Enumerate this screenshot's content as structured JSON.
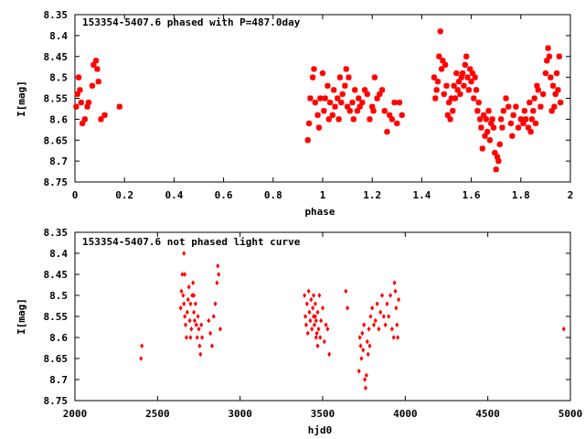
{
  "marker_color": "#ff0000",
  "chart_data": [
    {
      "type": "scatter",
      "title": "153354-5407.6 phased with P=487.0day",
      "xlabel": "phase",
      "ylabel": "I[mag]",
      "xlim": [
        0,
        2
      ],
      "ylim": [
        8.75,
        8.35
      ],
      "y_inverted": true,
      "xticks": [
        "0",
        "0.2",
        "0.4",
        "0.6",
        "0.8",
        "1",
        "1.2",
        "1.4",
        "1.6",
        "1.8",
        "2"
      ],
      "yticks": [
        "8.35",
        "8.4",
        "8.45",
        "8.5",
        "8.55",
        "8.6",
        "8.65",
        "8.7",
        "8.75"
      ],
      "series": [
        {
          "points": [
            [
              0.005,
              8.57
            ],
            [
              0.01,
              8.54
            ],
            [
              0.015,
              8.5
            ],
            [
              0.02,
              8.53
            ],
            [
              0.025,
              8.56
            ],
            [
              0.03,
              8.61
            ],
            [
              0.04,
              8.6
            ],
            [
              0.05,
              8.57
            ],
            [
              0.055,
              8.56
            ],
            [
              0.07,
              8.52
            ],
            [
              0.075,
              8.47
            ],
            [
              0.085,
              8.46
            ],
            [
              0.09,
              8.48
            ],
            [
              0.095,
              8.51
            ],
            [
              0.105,
              8.6
            ],
            [
              0.12,
              8.59
            ],
            [
              0.18,
              8.57
            ],
            [
              0.94,
              8.65
            ],
            [
              0.945,
              8.61
            ],
            [
              0.95,
              8.55
            ],
            [
              0.96,
              8.5
            ],
            [
              0.965,
              8.48
            ],
            [
              0.97,
              8.56
            ],
            [
              0.98,
              8.59
            ],
            [
              0.985,
              8.62
            ],
            [
              0.99,
              8.55
            ],
            [
              1.0,
              8.49
            ],
            [
              1.005,
              8.58
            ],
            [
              1.01,
              8.55
            ],
            [
              1.02,
              8.52
            ],
            [
              1.025,
              8.6
            ],
            [
              1.03,
              8.56
            ],
            [
              1.04,
              8.59
            ],
            [
              1.045,
              8.53
            ],
            [
              1.05,
              8.57
            ],
            [
              1.06,
              8.55
            ],
            [
              1.065,
              8.6
            ],
            [
              1.07,
              8.5
            ],
            [
              1.075,
              8.56
            ],
            [
              1.08,
              8.54
            ],
            [
              1.09,
              8.52
            ],
            [
              1.095,
              8.48
            ],
            [
              1.1,
              8.57
            ],
            [
              1.105,
              8.5
            ],
            [
              1.11,
              8.58
            ],
            [
              1.12,
              8.56
            ],
            [
              1.125,
              8.6
            ],
            [
              1.13,
              8.53
            ],
            [
              1.14,
              8.58
            ],
            [
              1.145,
              8.55
            ],
            [
              1.15,
              8.57
            ],
            [
              1.16,
              8.56
            ],
            [
              1.17,
              8.53
            ],
            [
              1.18,
              8.54
            ],
            [
              1.19,
              8.6
            ],
            [
              1.2,
              8.57
            ],
            [
              1.205,
              8.58
            ],
            [
              1.21,
              8.5
            ],
            [
              1.22,
              8.55
            ],
            [
              1.23,
              8.54
            ],
            [
              1.24,
              8.53
            ],
            [
              1.25,
              8.58
            ],
            [
              1.26,
              8.63
            ],
            [
              1.27,
              8.59
            ],
            [
              1.28,
              8.6
            ],
            [
              1.29,
              8.56
            ],
            [
              1.3,
              8.61
            ],
            [
              1.31,
              8.56
            ],
            [
              1.32,
              8.59
            ],
            [
              1.45,
              8.5
            ],
            [
              1.455,
              8.55
            ],
            [
              1.46,
              8.53
            ],
            [
              1.465,
              8.51
            ],
            [
              1.47,
              8.45
            ],
            [
              1.475,
              8.39
            ],
            [
              1.48,
              8.48
            ],
            [
              1.485,
              8.46
            ],
            [
              1.49,
              8.54
            ],
            [
              1.495,
              8.47
            ],
            [
              1.5,
              8.52
            ],
            [
              1.505,
              8.59
            ],
            [
              1.51,
              8.56
            ],
            [
              1.515,
              8.6
            ],
            [
              1.52,
              8.55
            ],
            [
              1.525,
              8.58
            ],
            [
              1.53,
              8.52
            ],
            [
              1.535,
              8.55
            ],
            [
              1.54,
              8.49
            ],
            [
              1.545,
              8.53
            ],
            [
              1.55,
              8.51
            ],
            [
              1.555,
              8.54
            ],
            [
              1.56,
              8.5
            ],
            [
              1.565,
              8.49
            ],
            [
              1.57,
              8.52
            ],
            [
              1.575,
              8.47
            ],
            [
              1.58,
              8.45
            ],
            [
              1.585,
              8.5
            ],
            [
              1.59,
              8.53
            ],
            [
              1.595,
              8.48
            ],
            [
              1.6,
              8.51
            ],
            [
              1.605,
              8.49
            ],
            [
              1.61,
              8.55
            ],
            [
              1.615,
              8.5
            ],
            [
              1.62,
              8.53
            ],
            [
              1.625,
              8.58
            ],
            [
              1.63,
              8.56
            ],
            [
              1.635,
              8.6
            ],
            [
              1.64,
              8.62
            ],
            [
              1.645,
              8.67
            ],
            [
              1.65,
              8.59
            ],
            [
              1.655,
              8.64
            ],
            [
              1.66,
              8.6
            ],
            [
              1.665,
              8.63
            ],
            [
              1.67,
              8.58
            ],
            [
              1.675,
              8.65
            ],
            [
              1.68,
              8.61
            ],
            [
              1.685,
              8.6
            ],
            [
              1.69,
              8.62
            ],
            [
              1.695,
              8.68
            ],
            [
              1.7,
              8.72
            ],
            [
              1.705,
              8.69
            ],
            [
              1.71,
              8.7
            ],
            [
              1.715,
              8.66
            ],
            [
              1.72,
              8.6
            ],
            [
              1.725,
              8.62
            ],
            [
              1.73,
              8.58
            ],
            [
              1.74,
              8.55
            ],
            [
              1.75,
              8.57
            ],
            [
              1.76,
              8.61
            ],
            [
              1.765,
              8.64
            ],
            [
              1.77,
              8.59
            ],
            [
              1.78,
              8.57
            ],
            [
              1.79,
              8.62
            ],
            [
              1.8,
              8.6
            ],
            [
              1.81,
              8.61
            ],
            [
              1.815,
              8.58
            ],
            [
              1.82,
              8.6
            ],
            [
              1.83,
              8.62
            ],
            [
              1.835,
              8.56
            ],
            [
              1.84,
              8.63
            ],
            [
              1.845,
              8.6
            ],
            [
              1.85,
              8.58
            ],
            [
              1.855,
              8.55
            ],
            [
              1.86,
              8.61
            ],
            [
              1.865,
              8.52
            ],
            [
              1.87,
              8.53
            ],
            [
              1.88,
              8.57
            ],
            [
              1.89,
              8.54
            ],
            [
              1.9,
              8.49
            ],
            [
              1.905,
              8.46
            ],
            [
              1.91,
              8.43
            ],
            [
              1.915,
              8.45
            ],
            [
              1.92,
              8.5
            ],
            [
              1.925,
              8.58
            ],
            [
              1.93,
              8.52
            ],
            [
              1.935,
              8.57
            ],
            [
              1.94,
              8.54
            ],
            [
              1.945,
              8.49
            ],
            [
              1.95,
              8.53
            ],
            [
              1.955,
              8.45
            ],
            [
              1.96,
              8.56
            ]
          ]
        }
      ]
    },
    {
      "type": "scatter",
      "title": "153354-5407.6 not phased light curve",
      "xlabel": "hjd0",
      "ylabel": "I[mag]",
      "xlim": [
        2000,
        5000
      ],
      "ylim": [
        8.75,
        8.35
      ],
      "y_inverted": true,
      "xticks": [
        "2000",
        "2500",
        "3000",
        "3500",
        "4000",
        "4500",
        "5000"
      ],
      "yticks": [
        "8.35",
        "8.4",
        "8.45",
        "8.5",
        "8.55",
        "8.6",
        "8.65",
        "8.7",
        "8.75"
      ],
      "series": [
        {
          "points": [
            [
              2400,
              8.65
            ],
            [
              2405,
              8.62
            ],
            [
              2640,
              8.53
            ],
            [
              2645,
              8.49
            ],
            [
              2650,
              8.45
            ],
            [
              2655,
              8.5
            ],
            [
              2660,
              8.52
            ],
            [
              2665,
              8.55
            ],
            [
              2670,
              8.57
            ],
            [
              2675,
              8.6
            ],
            [
              2680,
              8.54
            ],
            [
              2685,
              8.51
            ],
            [
              2690,
              8.48
            ],
            [
              2695,
              8.56
            ],
            [
              2700,
              8.52
            ],
            [
              2705,
              8.58
            ],
            [
              2710,
              8.5
            ],
            [
              2715,
              8.47
            ],
            [
              2720,
              8.54
            ],
            [
              2725,
              8.56
            ],
            [
              2730,
              8.52
            ],
            [
              2735,
              8.57
            ],
            [
              2740,
              8.6
            ],
            [
              2745,
              8.55
            ],
            [
              2750,
              8.58
            ],
            [
              2755,
              8.62
            ],
            [
              2760,
              8.64
            ],
            [
              2765,
              8.57
            ],
            [
              2770,
              8.6
            ],
            [
              2660,
              8.4
            ],
            [
              2665,
              8.45
            ],
            [
              2700,
              8.6
            ],
            [
              2720,
              8.5
            ],
            [
              2810,
              8.56
            ],
            [
              2820,
              8.59
            ],
            [
              2830,
              8.62
            ],
            [
              2840,
              8.55
            ],
            [
              2850,
              8.52
            ],
            [
              2860,
              8.47
            ],
            [
              2865,
              8.43
            ],
            [
              2870,
              8.45
            ],
            [
              2880,
              8.58
            ],
            [
              3390,
              8.5
            ],
            [
              3395,
              8.55
            ],
            [
              3400,
              8.57
            ],
            [
              3405,
              8.52
            ],
            [
              3410,
              8.59
            ],
            [
              3415,
              8.49
            ],
            [
              3420,
              8.54
            ],
            [
              3425,
              8.56
            ],
            [
              3430,
              8.51
            ],
            [
              3435,
              8.58
            ],
            [
              3440,
              8.53
            ],
            [
              3445,
              8.55
            ],
            [
              3450,
              8.57
            ],
            [
              3455,
              8.52
            ],
            [
              3460,
              8.56
            ],
            [
              3465,
              8.59
            ],
            [
              3470,
              8.54
            ],
            [
              3475,
              8.58
            ],
            [
              3480,
              8.5
            ],
            [
              3485,
              8.6
            ],
            [
              3490,
              8.56
            ],
            [
              3500,
              8.53
            ],
            [
              3510,
              8.61
            ],
            [
              3520,
              8.57
            ],
            [
              3530,
              8.58
            ],
            [
              3540,
              8.64
            ],
            [
              3445,
              8.5
            ],
            [
              3455,
              8.55
            ],
            [
              3460,
              8.6
            ],
            [
              3470,
              8.62
            ],
            [
              3640,
              8.49
            ],
            [
              3650,
              8.53
            ],
            [
              3720,
              8.68
            ],
            [
              3725,
              8.6
            ],
            [
              3730,
              8.62
            ],
            [
              3735,
              8.65
            ],
            [
              3740,
              8.59
            ],
            [
              3745,
              8.63
            ],
            [
              3750,
              8.57
            ],
            [
              3755,
              8.7
            ],
            [
              3760,
              8.72
            ],
            [
              3765,
              8.69
            ],
            [
              3770,
              8.61
            ],
            [
              3775,
              8.64
            ],
            [
              3780,
              8.58
            ],
            [
              3785,
              8.62
            ],
            [
              3790,
              8.55
            ],
            [
              3800,
              8.53
            ],
            [
              3810,
              8.57
            ],
            [
              3820,
              8.56
            ],
            [
              3830,
              8.52
            ],
            [
              3840,
              8.58
            ],
            [
              3850,
              8.54
            ],
            [
              3860,
              8.5
            ],
            [
              3870,
              8.55
            ],
            [
              3880,
              8.57
            ],
            [
              3890,
              8.52
            ],
            [
              3900,
              8.55
            ],
            [
              3910,
              8.5
            ],
            [
              3920,
              8.58
            ],
            [
              3930,
              8.6
            ],
            [
              3935,
              8.47
            ],
            [
              3940,
              8.49
            ],
            [
              3945,
              8.53
            ],
            [
              3950,
              8.57
            ],
            [
              3955,
              8.6
            ],
            [
              3960,
              8.51
            ],
            [
              4960,
              8.58
            ]
          ]
        }
      ]
    }
  ]
}
